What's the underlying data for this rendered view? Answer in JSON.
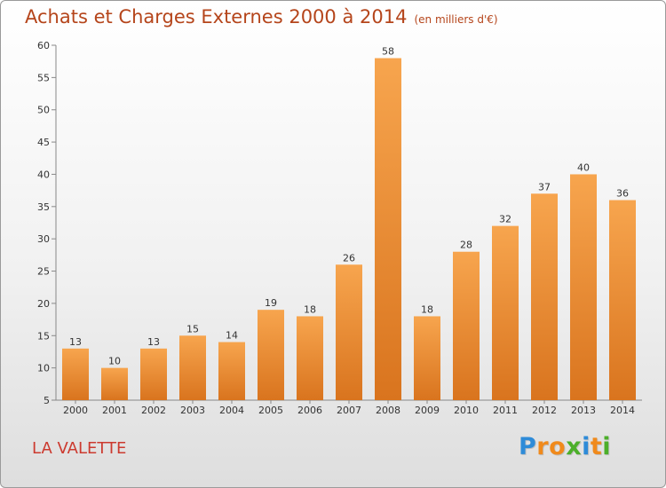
{
  "header": {
    "title": "Achats et Charges Externes 2000 à 2014",
    "subtitle": "(en milliers d'€)"
  },
  "footer": {
    "location": "LA VALETTE",
    "logo_text": "Proxiti",
    "logo_letters": [
      {
        "ch": "P",
        "color": "#2e8bd8"
      },
      {
        "ch": "r",
        "color": "#f08a1c"
      },
      {
        "ch": "o",
        "color": "#f08a1c"
      },
      {
        "ch": "x",
        "color": "#4caf2a"
      },
      {
        "ch": "i",
        "color": "#2e8bd8"
      },
      {
        "ch": "t",
        "color": "#f08a1c"
      },
      {
        "ch": "i",
        "color": "#4caf2a"
      }
    ]
  },
  "colors": {
    "bar_top": "#f7a54e",
    "bar_bottom": "#d9741e",
    "title": "#b5451b",
    "location": "#cc3a2f"
  },
  "chart_data": {
    "type": "bar",
    "title": "Achats et Charges Externes 2000 à 2014",
    "subtitle": "(en milliers d'€)",
    "xlabel": "",
    "ylabel": "",
    "categories": [
      "2000",
      "2001",
      "2002",
      "2003",
      "2004",
      "2005",
      "2006",
      "2007",
      "2008",
      "2009",
      "2010",
      "2011",
      "2012",
      "2013",
      "2014"
    ],
    "values": [
      13,
      10,
      13,
      15,
      14,
      19,
      18,
      26,
      58,
      18,
      28,
      32,
      37,
      40,
      36
    ],
    "ylim": [
      5,
      60
    ],
    "yticks": [
      5,
      10,
      15,
      20,
      25,
      30,
      35,
      40,
      45,
      50,
      55,
      60
    ],
    "grid": false,
    "legend": "none"
  }
}
